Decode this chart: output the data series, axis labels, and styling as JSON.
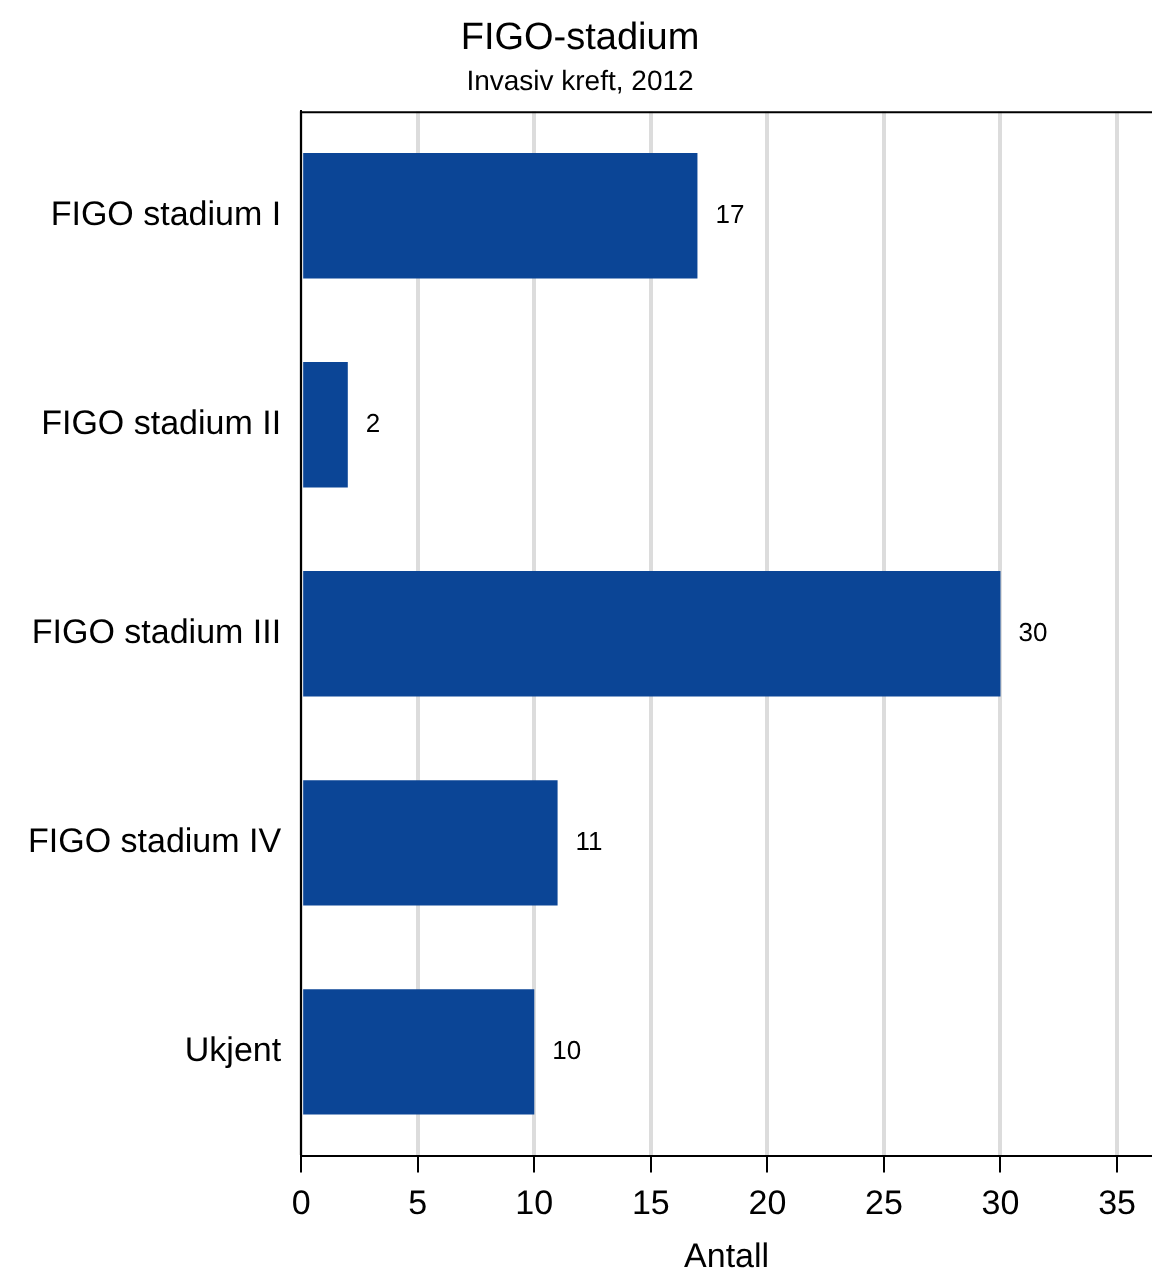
{
  "chart_data": {
    "type": "bar",
    "orientation": "horizontal",
    "title": "FIGO-stadium",
    "subtitle": "Invasiv kreft, 2012",
    "xlabel": "Antall",
    "categories": [
      "FIGO stadium I",
      "FIGO stadium II",
      "FIGO stadium III",
      "FIGO stadium IV",
      "Ukjent"
    ],
    "values": [
      17,
      2,
      30,
      11,
      10
    ],
    "color": "#0b4596",
    "xlim": [
      0,
      36.5
    ],
    "xticks": [
      0,
      5,
      10,
      15,
      20,
      25,
      30,
      35
    ],
    "grid": "x",
    "data_labels": true,
    "legend": false
  }
}
